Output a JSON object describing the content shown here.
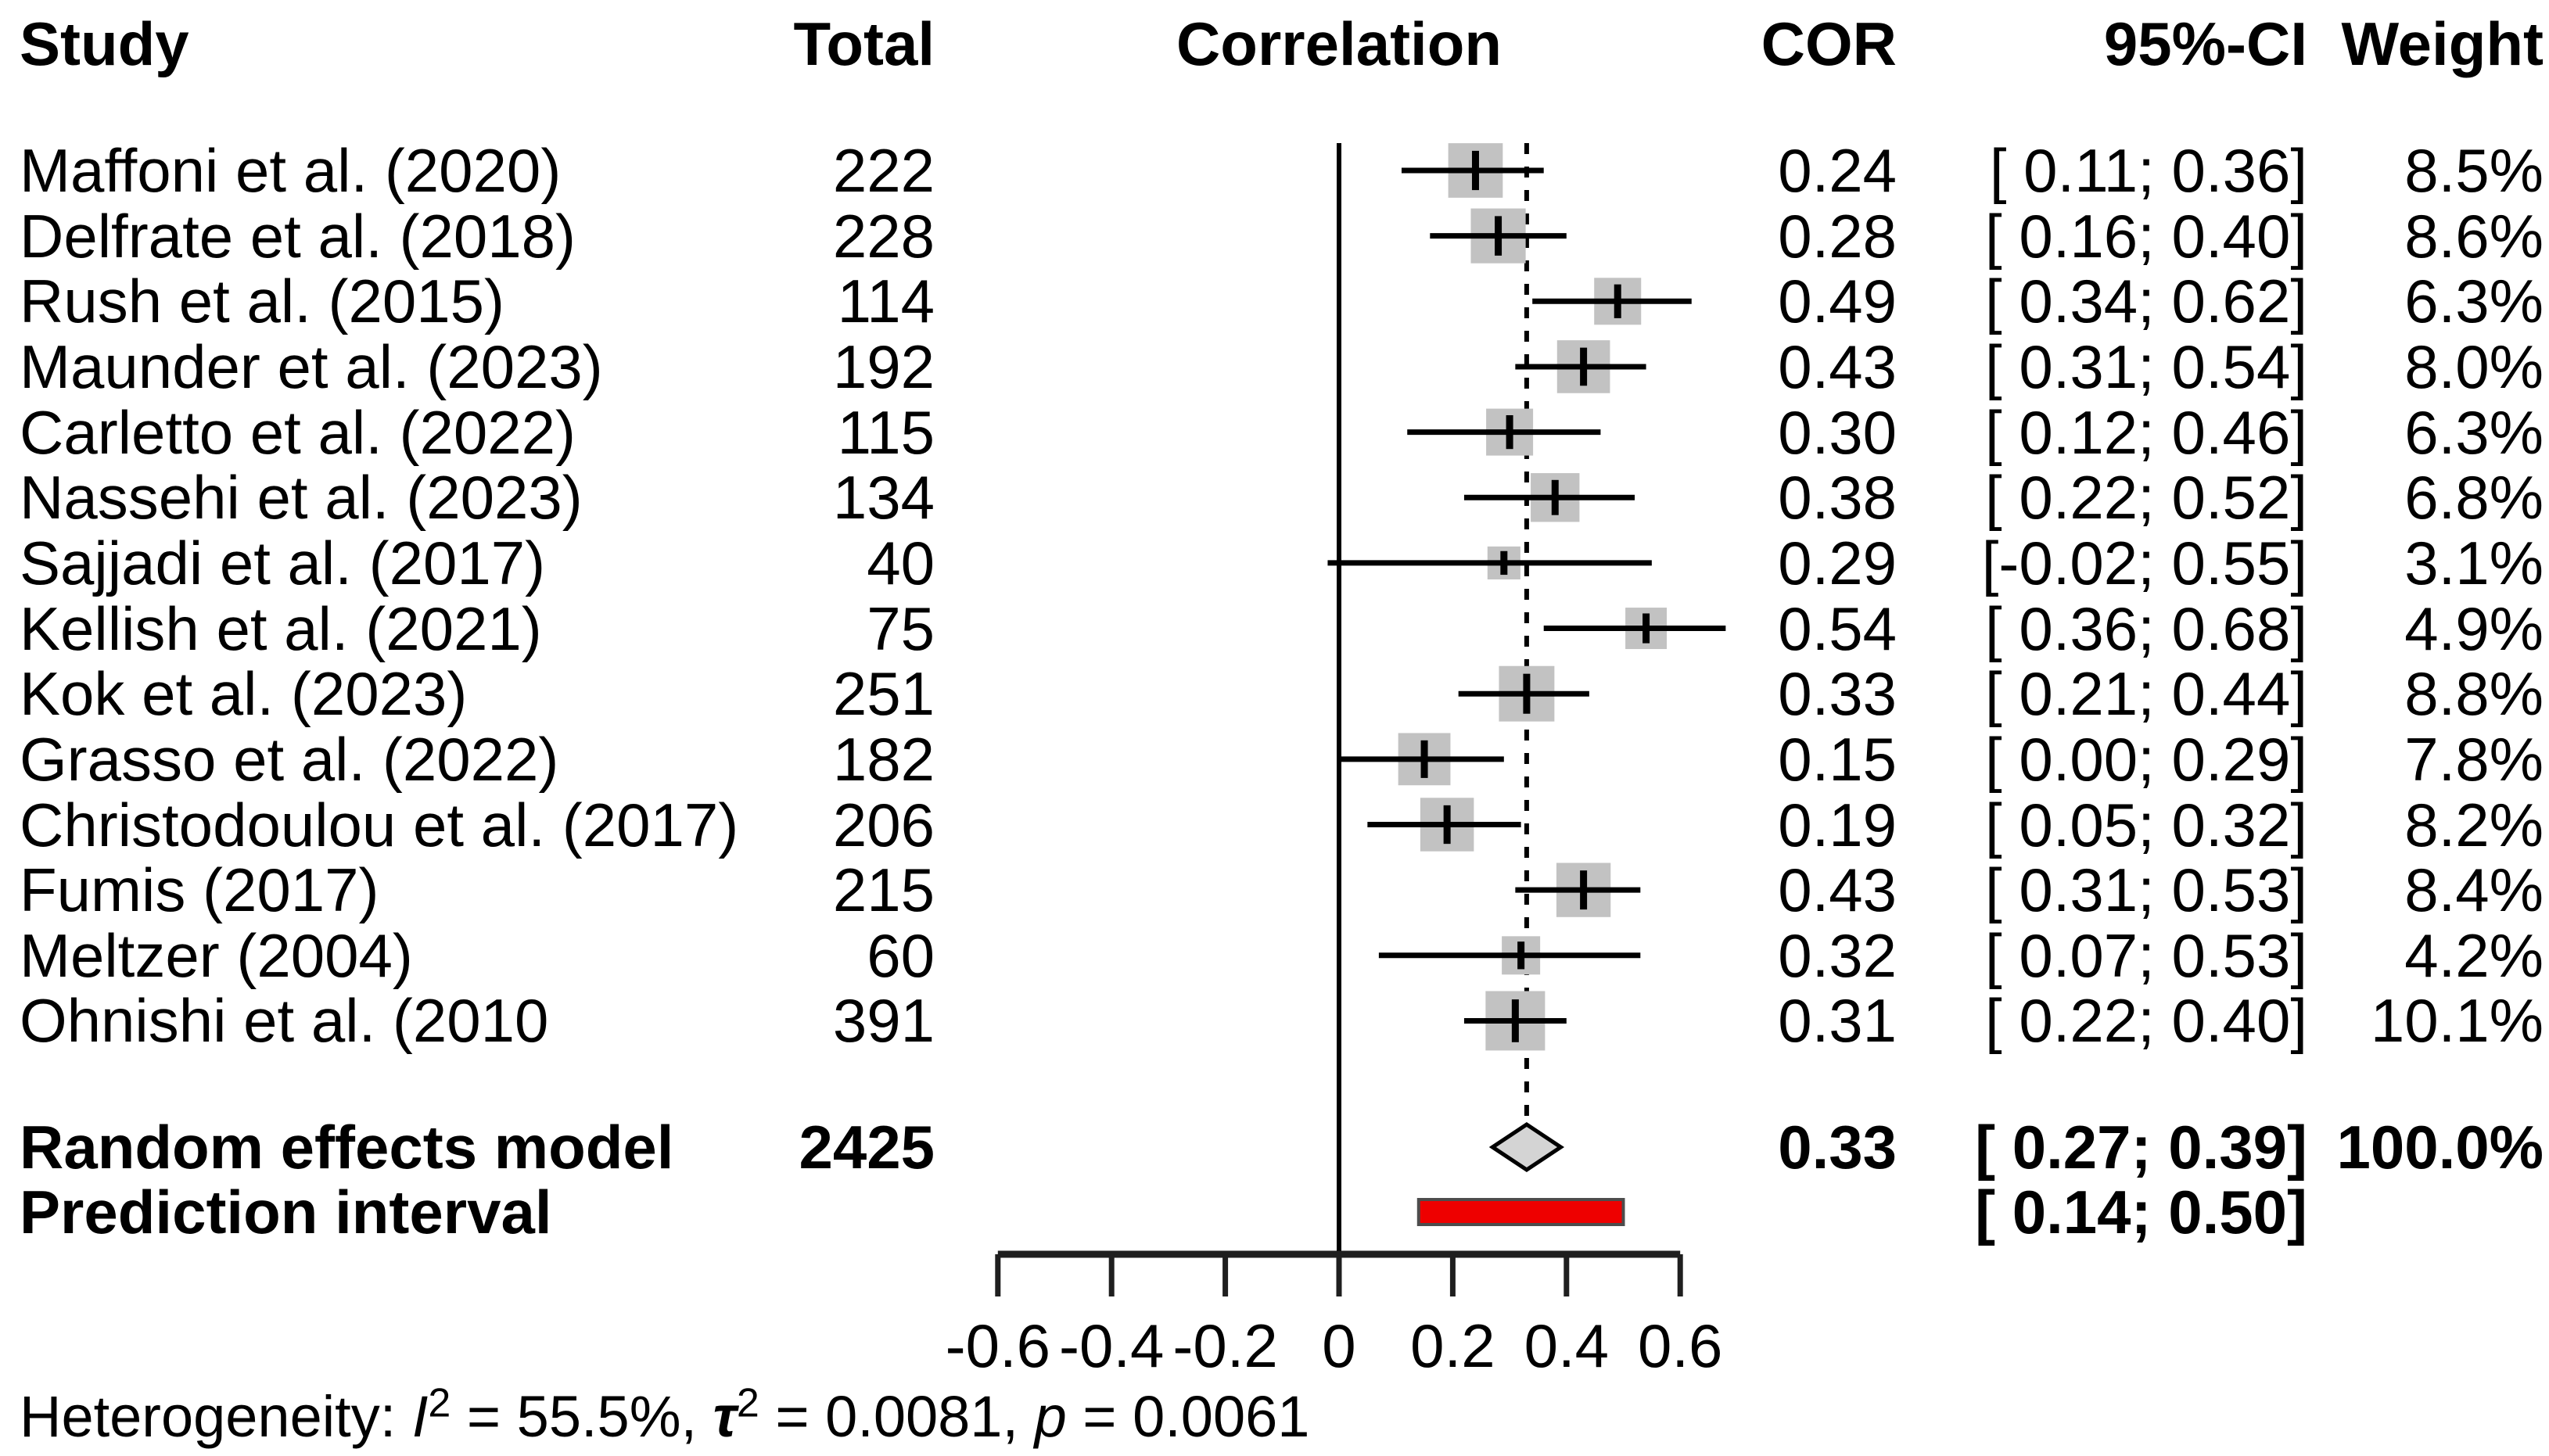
{
  "header": {
    "study": "Study",
    "total": "Total",
    "correlation": "Correlation",
    "cor": "COR",
    "ci": "95%-CI",
    "weight": "Weight"
  },
  "chart_data": {
    "type": "forest",
    "xlabel_ticks_note": "correlation scale",
    "axis": {
      "xlim": [
        -0.6,
        0.6
      ],
      "ticks": [
        -0.6,
        -0.4,
        -0.2,
        0,
        0.2,
        0.4,
        0.6
      ],
      "tick_labels": [
        "-0.6",
        "-0.4",
        "-0.2",
        "0",
        "0.2",
        "0.4",
        "0.6"
      ],
      "zero_line": 0,
      "dashed_line": 0.33
    },
    "studies": [
      {
        "study": "Maffoni et al. (2020)",
        "total": "222",
        "cor": 0.24,
        "cor_label": "0.24",
        "ci_low": 0.11,
        "ci_high": 0.36,
        "ci_label": "[ 0.11; 0.36]",
        "weight": 8.5,
        "weight_label": "8.5%"
      },
      {
        "study": "Delfrate et al. (2018)",
        "total": "228",
        "cor": 0.28,
        "cor_label": "0.28",
        "ci_low": 0.16,
        "ci_high": 0.4,
        "ci_label": "[ 0.16; 0.40]",
        "weight": 8.6,
        "weight_label": "8.6%"
      },
      {
        "study": "Rush et al. (2015)",
        "total": "114",
        "cor": 0.49,
        "cor_label": "0.49",
        "ci_low": 0.34,
        "ci_high": 0.62,
        "ci_label": "[ 0.34; 0.62]",
        "weight": 6.3,
        "weight_label": "6.3%"
      },
      {
        "study": "Maunder et al. (2023)",
        "total": "192",
        "cor": 0.43,
        "cor_label": "0.43",
        "ci_low": 0.31,
        "ci_high": 0.54,
        "ci_label": "[ 0.31; 0.54]",
        "weight": 8.0,
        "weight_label": "8.0%"
      },
      {
        "study": "Carletto et al. (2022)",
        "total": "115",
        "cor": 0.3,
        "cor_label": "0.30",
        "ci_low": 0.12,
        "ci_high": 0.46,
        "ci_label": "[ 0.12; 0.46]",
        "weight": 6.3,
        "weight_label": "6.3%"
      },
      {
        "study": "Nassehi et al. (2023)",
        "total": "134",
        "cor": 0.38,
        "cor_label": "0.38",
        "ci_low": 0.22,
        "ci_high": 0.52,
        "ci_label": "[ 0.22; 0.52]",
        "weight": 6.8,
        "weight_label": "6.8%"
      },
      {
        "study": "Sajjadi et al. (2017)",
        "total": "40",
        "cor": 0.29,
        "cor_label": "0.29",
        "ci_low": -0.02,
        "ci_high": 0.55,
        "ci_label": "[-0.02; 0.55]",
        "weight": 3.1,
        "weight_label": "3.1%"
      },
      {
        "study": "Kellish et al. (2021)",
        "total": "75",
        "cor": 0.54,
        "cor_label": "0.54",
        "ci_low": 0.36,
        "ci_high": 0.68,
        "ci_label": "[ 0.36; 0.68]",
        "weight": 4.9,
        "weight_label": "4.9%"
      },
      {
        "study": "Kok et al. (2023)",
        "total": "251",
        "cor": 0.33,
        "cor_label": "0.33",
        "ci_low": 0.21,
        "ci_high": 0.44,
        "ci_label": "[ 0.21; 0.44]",
        "weight": 8.8,
        "weight_label": "8.8%"
      },
      {
        "study": "Grasso et al. (2022)",
        "total": "182",
        "cor": 0.15,
        "cor_label": "0.15",
        "ci_low": 0.0,
        "ci_high": 0.29,
        "ci_label": "[ 0.00; 0.29]",
        "weight": 7.8,
        "weight_label": "7.8%"
      },
      {
        "study": "Christodoulou et al. (2017)",
        "total": "206",
        "cor": 0.19,
        "cor_label": "0.19",
        "ci_low": 0.05,
        "ci_high": 0.32,
        "ci_label": "[ 0.05; 0.32]",
        "weight": 8.2,
        "weight_label": "8.2%"
      },
      {
        "study": "Fumis (2017)",
        "total": "215",
        "cor": 0.43,
        "cor_label": "0.43",
        "ci_low": 0.31,
        "ci_high": 0.53,
        "ci_label": "[ 0.31; 0.53]",
        "weight": 8.4,
        "weight_label": "8.4%"
      },
      {
        "study": "Meltzer (2004)",
        "total": "60",
        "cor": 0.32,
        "cor_label": "0.32",
        "ci_low": 0.07,
        "ci_high": 0.53,
        "ci_label": "[ 0.07; 0.53]",
        "weight": 4.2,
        "weight_label": "4.2%"
      },
      {
        "study": "Ohnishi et al. (2010",
        "total": "391",
        "cor": 0.31,
        "cor_label": "0.31",
        "ci_low": 0.22,
        "ci_high": 0.4,
        "ci_label": "[ 0.22; 0.40]",
        "weight": 10.1,
        "weight_label": "10.1%"
      }
    ],
    "summary": {
      "label": "Random effects model",
      "total": "2425",
      "cor": 0.33,
      "cor_label": "0.33",
      "ci_low": 0.27,
      "ci_high": 0.39,
      "ci_label": "[ 0.27; 0.39]",
      "weight_label": "100.0%"
    },
    "prediction": {
      "label": "Prediction interval",
      "ci_low": 0.14,
      "ci_high": 0.5,
      "ci_label": "[ 0.14; 0.50]"
    },
    "heterogeneity_segments": [
      {
        "t": "Heterogeneity: "
      },
      {
        "t": "I",
        "style": "italic"
      },
      {
        "t": "2",
        "sup": true
      },
      {
        "t": " = 55.5%, "
      },
      {
        "t": "τ",
        "style": "bold-italic"
      },
      {
        "t": "2",
        "sup": true
      },
      {
        "t": " = 0.0081, "
      },
      {
        "t": "p",
        "style": "italic"
      },
      {
        "t": " = 0.0061"
      }
    ],
    "colors": {
      "square": "#c2c2c2",
      "diamond_fill": "#d4d4d4",
      "diamond_stroke": "#000000",
      "prediction_fill": "#ee0000",
      "prediction_stroke": "#4d4d4d",
      "line": "#000000",
      "axis": "#1f1f1f"
    }
  }
}
